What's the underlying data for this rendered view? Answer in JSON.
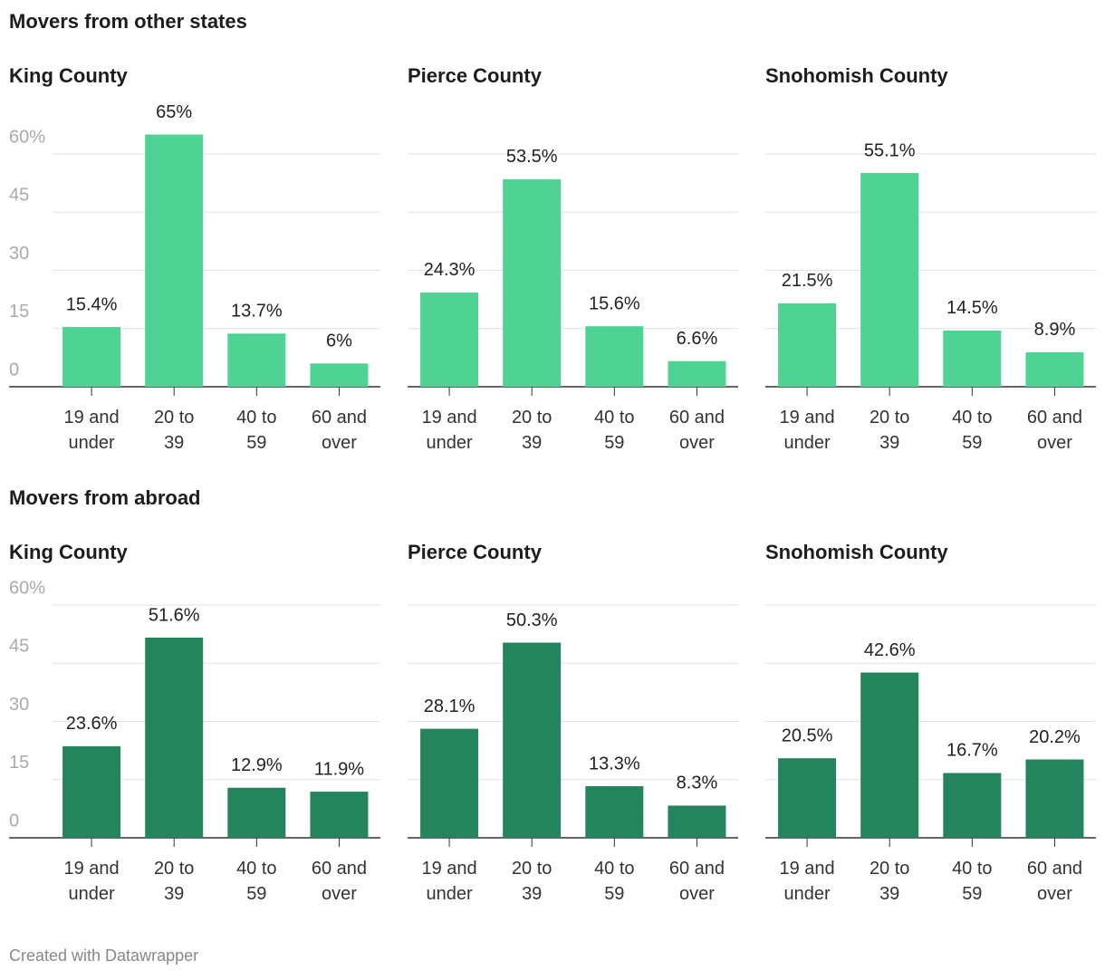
{
  "sections": [
    {
      "title": "Movers from other states"
    },
    {
      "title": "Movers from abroad"
    }
  ],
  "chart_data": [
    {
      "type": "bar",
      "title": "King County",
      "categories": [
        "19 and under",
        "20 to 39",
        "40 to 59",
        "60 and over"
      ],
      "values": [
        15.4,
        65,
        13.7,
        6
      ],
      "value_labels": [
        "15.4%",
        "65%",
        "13.7%",
        "6%"
      ],
      "color": "#4fd395",
      "ylim": [
        0,
        60
      ],
      "yticks": [
        0,
        15,
        30,
        45,
        {
          "value": 60,
          "label": "60%"
        }
      ],
      "grid": true
    },
    {
      "type": "bar",
      "title": "Pierce County",
      "categories": [
        "19 and under",
        "20 to 39",
        "40 to 59",
        "60 and over"
      ],
      "values": [
        24.3,
        53.5,
        15.6,
        6.6
      ],
      "value_labels": [
        "24.3%",
        "53.5%",
        "15.6%",
        "6.6%"
      ],
      "color": "#4fd395",
      "ylim": [
        0,
        60
      ],
      "yticks": [
        0,
        15,
        30,
        45,
        {
          "value": 60,
          "label": "60%"
        }
      ],
      "grid": true
    },
    {
      "type": "bar",
      "title": "Snohomish County",
      "categories": [
        "19 and under",
        "20 to 39",
        "40 to 59",
        "60 and over"
      ],
      "values": [
        21.5,
        55.1,
        14.5,
        8.9
      ],
      "value_labels": [
        "21.5%",
        "55.1%",
        "14.5%",
        "8.9%"
      ],
      "color": "#4fd395",
      "ylim": [
        0,
        60
      ],
      "yticks": [
        0,
        15,
        30,
        45,
        {
          "value": 60,
          "label": "60%"
        }
      ],
      "grid": true
    },
    {
      "type": "bar",
      "title": "King County",
      "categories": [
        "19 and under",
        "20 to 39",
        "40 to 59",
        "60 and over"
      ],
      "values": [
        23.6,
        51.6,
        12.9,
        11.9
      ],
      "value_labels": [
        "23.6%",
        "51.6%",
        "12.9%",
        "11.9%"
      ],
      "color": "#24845e",
      "ylim": [
        0,
        60
      ],
      "yticks": [
        0,
        15,
        30,
        45,
        {
          "value": 60,
          "label": "60%"
        }
      ],
      "grid": true
    },
    {
      "type": "bar",
      "title": "Pierce County",
      "categories": [
        "19 and under",
        "20 to 39",
        "40 to 59",
        "60 and over"
      ],
      "values": [
        28.1,
        50.3,
        13.3,
        8.3
      ],
      "value_labels": [
        "28.1%",
        "50.3%",
        "13.3%",
        "8.3%"
      ],
      "color": "#24845e",
      "ylim": [
        0,
        60
      ],
      "yticks": [
        0,
        15,
        30,
        45,
        {
          "value": 60,
          "label": "60%"
        }
      ],
      "grid": true
    },
    {
      "type": "bar",
      "title": "Snohomish County",
      "categories": [
        "19 and under",
        "20 to 39",
        "40 to 59",
        "60 and over"
      ],
      "values": [
        20.5,
        42.6,
        16.7,
        20.2
      ],
      "value_labels": [
        "20.5%",
        "42.6%",
        "16.7%",
        "20.2%"
      ],
      "color": "#24845e",
      "ylim": [
        0,
        60
      ],
      "yticks": [
        0,
        15,
        30,
        45,
        {
          "value": 60,
          "label": "60%"
        }
      ],
      "grid": true
    }
  ],
  "footer": "Created with Datawrapper"
}
